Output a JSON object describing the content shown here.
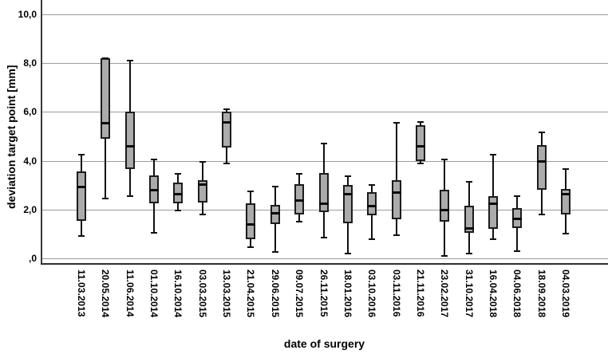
{
  "chart_data": {
    "type": "boxplot",
    "title": "",
    "xlabel": "date of surgery",
    "ylabel": "deviation target point [mm]",
    "ylim": [
      0,
      10
    ],
    "grid": true,
    "y_ticks": [
      {
        "value": 0,
        "label": ",0"
      },
      {
        "value": 2,
        "label": "2,0"
      },
      {
        "value": 4,
        "label": "4,0"
      },
      {
        "value": 6,
        "label": "6,0"
      },
      {
        "value": 8,
        "label": "8,0"
      },
      {
        "value": 10,
        "label": "10,0"
      }
    ],
    "categories": [
      "11.03.2013",
      "20.05.2014",
      "11.06.2014",
      "01.10.2014",
      "16.10.2014",
      "03.03.2015",
      "13.03.2015",
      "21.04.2015",
      "29.06.2015",
      "09.07.2015",
      "26.11.2015",
      "18.01.2016",
      "03.10.2016",
      "03.11.2016",
      "21.11.2016",
      "23.02.2017",
      "31.10.2017",
      "16.04.2018",
      "04.06.2018",
      "18.09.2018",
      "04.03.2019"
    ],
    "series": [
      {
        "date": "11.03.2013",
        "min": 0.9,
        "q1": 1.55,
        "median": 2.95,
        "q3": 3.55,
        "max": 4.25
      },
      {
        "date": "20.05.2014",
        "min": 2.45,
        "q1": 4.9,
        "median": 5.55,
        "q3": 8.2,
        "max": 8.2
      },
      {
        "date": "11.06.2014",
        "min": 2.55,
        "q1": 3.65,
        "median": 4.6,
        "q3": 6.0,
        "max": 8.1
      },
      {
        "date": "01.10.2014",
        "min": 1.05,
        "q1": 2.25,
        "median": 2.8,
        "q3": 3.4,
        "max": 4.05
      },
      {
        "date": "16.10.2014",
        "min": 1.95,
        "q1": 2.25,
        "median": 2.65,
        "q3": 3.1,
        "max": 3.45
      },
      {
        "date": "03.03.2015",
        "min": 1.8,
        "q1": 2.3,
        "median": 3.05,
        "q3": 3.2,
        "max": 3.95
      },
      {
        "date": "13.03.2015",
        "min": 3.9,
        "q1": 4.55,
        "median": 5.6,
        "q3": 6.0,
        "max": 6.1
      },
      {
        "date": "21.04.2015",
        "min": 0.45,
        "q1": 0.8,
        "median": 1.4,
        "q3": 2.25,
        "max": 2.75
      },
      {
        "date": "29.06.2015",
        "min": 0.25,
        "q1": 1.4,
        "median": 1.85,
        "q3": 2.2,
        "max": 2.95
      },
      {
        "date": "09.07.2015",
        "min": 1.5,
        "q1": 1.8,
        "median": 2.4,
        "q3": 3.05,
        "max": 3.45
      },
      {
        "date": "26.11.2015",
        "min": 0.85,
        "q1": 1.9,
        "median": 2.25,
        "q3": 3.5,
        "max": 4.7
      },
      {
        "date": "18.01.2016",
        "min": 0.2,
        "q1": 1.45,
        "median": 2.65,
        "q3": 3.0,
        "max": 3.35
      },
      {
        "date": "03.10.2016",
        "min": 0.8,
        "q1": 1.75,
        "median": 2.15,
        "q3": 2.7,
        "max": 3.0
      },
      {
        "date": "03.11.2016",
        "min": 0.95,
        "q1": 1.6,
        "median": 2.7,
        "q3": 3.2,
        "max": 5.55
      },
      {
        "date": "21.11.2016",
        "min": 3.9,
        "q1": 4.0,
        "median": 4.6,
        "q3": 5.45,
        "max": 5.6
      },
      {
        "date": "23.02.2017",
        "min": 0.1,
        "q1": 1.5,
        "median": 2.0,
        "q3": 2.8,
        "max": 4.05
      },
      {
        "date": "31.10.2017",
        "min": 0.2,
        "q1": 1.05,
        "median": 1.25,
        "q3": 2.15,
        "max": 3.15
      },
      {
        "date": "16.04.2018",
        "min": 0.8,
        "q1": 1.2,
        "median": 2.25,
        "q3": 2.55,
        "max": 4.25
      },
      {
        "date": "04.06.2018",
        "min": 0.3,
        "q1": 1.25,
        "median": 1.65,
        "q3": 2.05,
        "max": 2.55
      },
      {
        "date": "18.09.2018",
        "min": 1.8,
        "q1": 2.8,
        "median": 4.0,
        "q3": 4.65,
        "max": 5.15
      },
      {
        "date": "04.03.2019",
        "min": 1.0,
        "q1": 1.8,
        "median": 2.65,
        "q3": 2.85,
        "max": 3.65
      }
    ]
  },
  "colors": {
    "box_fill": "#ababab",
    "box_border": "#1c1c1c",
    "median": "#0a0a0a",
    "whisker": "#101010",
    "gridline": "#9b9b9b",
    "axis_line": "#3a3a3a",
    "text": "#000000",
    "background": "#ffffff"
  }
}
